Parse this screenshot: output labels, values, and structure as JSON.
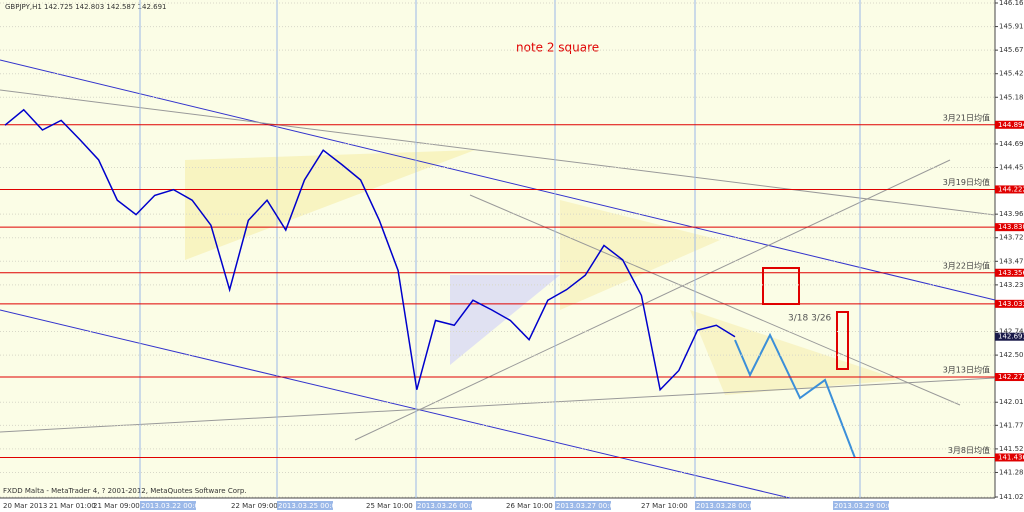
{
  "chart_data": {
    "type": "line",
    "title": "GBPJPY,H1  142.725 142.803 142.587 142.691",
    "annotation": "note 2 square",
    "footer": "FXDD Malta - MetaTrader 4, ? 2001-2012, MetaQuotes Software Corp.",
    "range_note": "3/18 3/26",
    "x_labels": [
      "20 Mar 2013",
      "21 Mar 01:00",
      "21 Mar 09:00",
      "2013.03.22 00:00",
      "22 Mar 09:00",
      "2013.03.25 00:00",
      "25 Mar 10:00",
      "2013.03.26 00:00",
      "26 Mar 10:00",
      "2013.03.27 00:00",
      "27 Mar 10:00",
      "2013.03.28 00:00",
      "2013.03.29 00:00"
    ],
    "series": [
      {
        "name": "GBPJPY",
        "color": "#0000cc",
        "values": [
          144.89,
          145.05,
          144.84,
          144.94,
          144.74,
          144.53,
          144.11,
          143.96,
          144.16,
          144.22,
          144.11,
          143.85,
          143.18,
          143.9,
          144.11,
          143.8,
          144.32,
          144.63,
          144.48,
          144.32,
          143.9,
          143.38,
          142.14,
          142.86,
          142.81,
          143.07,
          142.97,
          142.86,
          142.66,
          143.07,
          143.18,
          143.33,
          143.64,
          143.49,
          143.12,
          142.14,
          142.34,
          142.76,
          142.81,
          142.691
        ]
      }
    ],
    "ylim": [
      141.025,
      146.16
    ],
    "yticks": [
      {
        "value": 146.16,
        "label": "146.160"
      },
      145.915,
      {
        "value": 145.67,
        "label": "145.670"
      },
      145.425,
      {
        "value": 145.18,
        "label": "145.180"
      },
      144.695,
      {
        "value": 144.45,
        "label": "144.450"
      },
      143.965,
      {
        "value": 143.72,
        "label": "143.720"
      },
      143.475,
      {
        "value": 143.23,
        "label": "143.230"
      },
      142.745,
      {
        "value": 142.5,
        "label": "142.500"
      },
      {
        "value": 142.01,
        "label": "142.010"
      },
      {
        "value": 141.77,
        "label": "141.770"
      },
      141.525,
      {
        "value": 141.28,
        "label": "141.280"
      },
      141.025
    ],
    "levels": [
      {
        "value": 144.894,
        "note": "3月21日均值"
      },
      {
        "value": 144.222,
        "note": "3月19日均值"
      },
      {
        "value": 143.83,
        "label": "143.830"
      },
      {
        "value": 143.356,
        "note": "3月22日均值"
      },
      {
        "value": 143.033
      },
      {
        "value": 142.272,
        "note": "3月13日均值"
      },
      {
        "value": 141.436,
        "note": "3月8日均值"
      }
    ],
    "current": 142.691,
    "grid": true
  }
}
